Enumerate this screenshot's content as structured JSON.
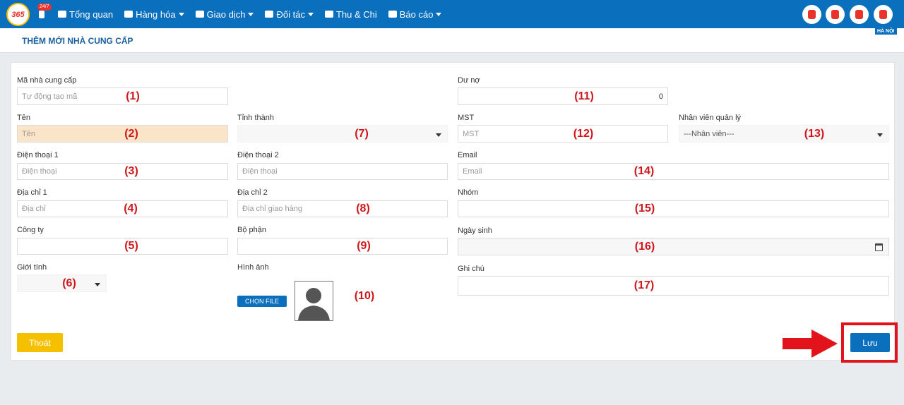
{
  "nav": {
    "logo": "365",
    "badge": "24/7",
    "menu": [
      "Tổng quan",
      "Hàng hóa",
      "Giao dịch",
      "Đối tác",
      "Thu & Chi",
      "Báo cáo"
    ]
  },
  "header": {
    "title": "THÊM MỚI NHÀ CUNG CẤP",
    "region": "HÀ NỘI"
  },
  "form": {
    "fields": [
      {
        "label": "Mã nhà cung cấp",
        "placeholder": "Tự động tạo mã",
        "annotation": "(1)"
      },
      {
        "label": "Tên",
        "placeholder": "Tên",
        "annotation": "(2)"
      },
      {
        "label": "Điện thoại 1",
        "placeholder": "Điện thoại",
        "annotation": "(3)"
      },
      {
        "label": "Địa chỉ 1",
        "placeholder": "Địa chỉ",
        "annotation": "(4)"
      },
      {
        "label": "Công ty",
        "annotation": "(5)"
      },
      {
        "label": "Giới tính",
        "annotation": "(6)"
      },
      {
        "label": "Tỉnh thành",
        "annotation": "(7)"
      },
      {
        "label": "Điện thoại 2",
        "placeholder": "Điện thoại"
      },
      {
        "label": "Địa chỉ 2",
        "placeholder": "Địa chỉ giao hàng",
        "annotation": "(8)"
      },
      {
        "label": "Bộ phận",
        "annotation": "(9)"
      },
      {
        "label": "Hình ảnh",
        "button": "CHỌN FILE",
        "annotation": "(10)"
      },
      {
        "label": "Dư nợ",
        "value": "0",
        "annotation": "(11)"
      },
      {
        "label": "MST",
        "placeholder": "MST",
        "annotation": "(12)"
      },
      {
        "label": "Nhân viên quản lý",
        "placeholder": "---Nhân viên---",
        "annotation": "(13)"
      },
      {
        "label": "Email",
        "placeholder": "Email",
        "annotation": "(14)"
      },
      {
        "label": "Nhóm",
        "annotation": "(15)"
      },
      {
        "label": "Ngày sinh",
        "annotation": "(16)"
      },
      {
        "label": "Ghi chú",
        "annotation": "(17)"
      }
    ]
  },
  "buttons": {
    "exit": "Thoát",
    "save": "Lưu"
  }
}
